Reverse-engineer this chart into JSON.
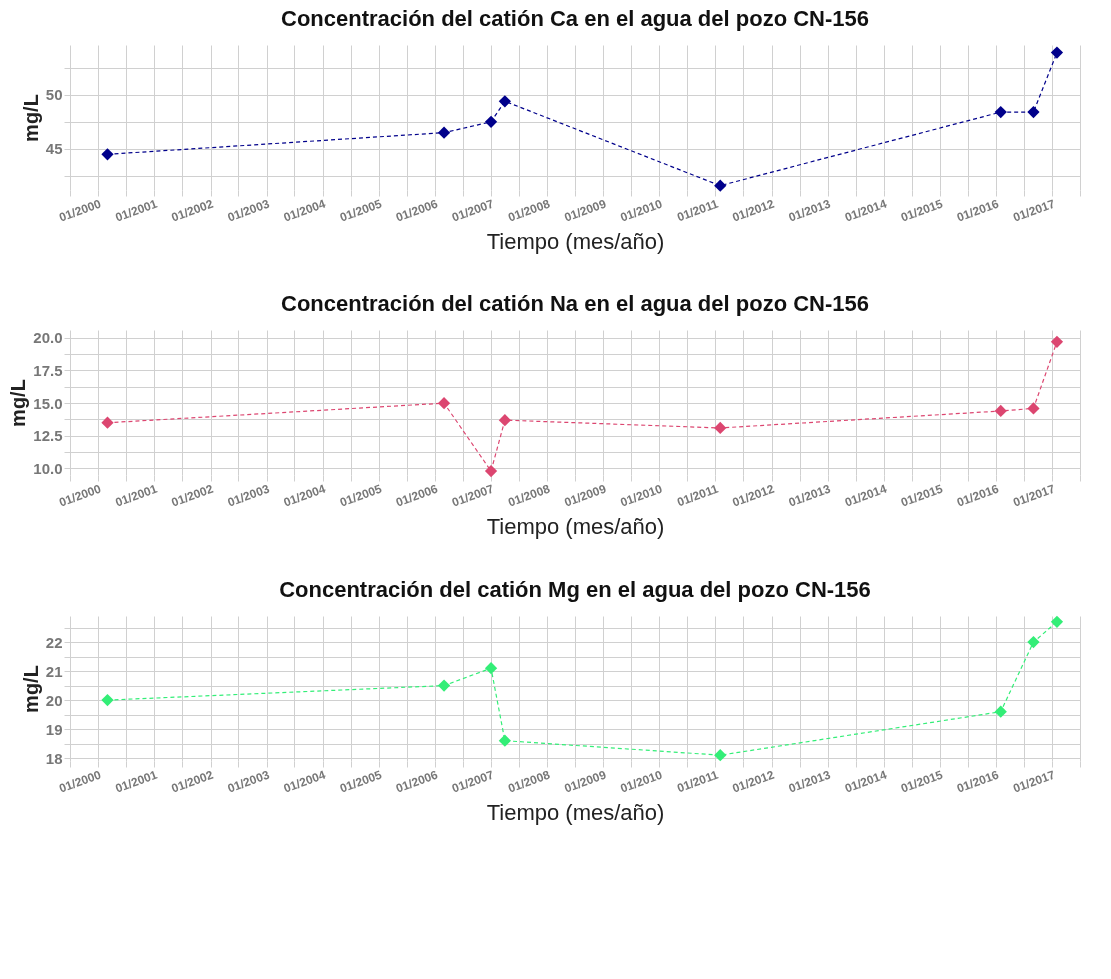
{
  "chart_data": [
    {
      "type": "line",
      "title": "Concentración del catión Ca en el agua del pozo CN-156",
      "xlabel": "Tiempo (mes/año)",
      "ylabel": "mg/L",
      "x": [
        "2000-03",
        "2006-03",
        "2007-01",
        "2007-04",
        "2011-02",
        "2016-02",
        "2016-09",
        "2017-02"
      ],
      "series": [
        {
          "color": "#00008b",
          "values": [
            44.5,
            46.5,
            47.5,
            49.4,
            41.6,
            48.4,
            48.4,
            53.9
          ]
        }
      ],
      "xlim": [
        "1999-07",
        "2017-07"
      ],
      "xticks": [
        {
          "value": "1999-07",
          "label": null
        },
        {
          "value": "2000-01",
          "label": "01/2000"
        },
        {
          "value": "2000-07",
          "label": null
        },
        {
          "value": "2001-01",
          "label": "01/2001"
        },
        {
          "value": "2001-07",
          "label": null
        },
        {
          "value": "2002-01",
          "label": "01/2002"
        },
        {
          "value": "2002-07",
          "label": null
        },
        {
          "value": "2003-01",
          "label": "01/2003"
        },
        {
          "value": "2003-07",
          "label": null
        },
        {
          "value": "2004-01",
          "label": "01/2004"
        },
        {
          "value": "2004-07",
          "label": null
        },
        {
          "value": "2005-01",
          "label": "01/2005"
        },
        {
          "value": "2005-07",
          "label": null
        },
        {
          "value": "2006-01",
          "label": "01/2006"
        },
        {
          "value": "2006-07",
          "label": null
        },
        {
          "value": "2007-01",
          "label": "01/2007"
        },
        {
          "value": "2007-07",
          "label": null
        },
        {
          "value": "2008-01",
          "label": "01/2008"
        },
        {
          "value": "2008-07",
          "label": null
        },
        {
          "value": "2009-01",
          "label": "01/2009"
        },
        {
          "value": "2009-07",
          "label": null
        },
        {
          "value": "2010-01",
          "label": "01/2010"
        },
        {
          "value": "2010-07",
          "label": null
        },
        {
          "value": "2011-01",
          "label": "01/2011"
        },
        {
          "value": "2011-07",
          "label": null
        },
        {
          "value": "2012-01",
          "label": "01/2012"
        },
        {
          "value": "2012-07",
          "label": null
        },
        {
          "value": "2013-01",
          "label": "01/2013"
        },
        {
          "value": "2013-07",
          "label": null
        },
        {
          "value": "2014-01",
          "label": "01/2014"
        },
        {
          "value": "2014-07",
          "label": null
        },
        {
          "value": "2015-01",
          "label": "01/2015"
        },
        {
          "value": "2015-07",
          "label": null
        },
        {
          "value": "2016-01",
          "label": "01/2016"
        },
        {
          "value": "2016-07",
          "label": null
        },
        {
          "value": "2017-01",
          "label": "01/2017"
        },
        {
          "value": "2017-07",
          "label": null
        }
      ],
      "ylim": [
        41.2,
        54.6
      ],
      "yticks": [
        {
          "value": 42.5,
          "label": null
        },
        45,
        {
          "value": 47.5,
          "label": null
        },
        50,
        {
          "value": 52.5,
          "label": null
        }
      ],
      "grid": true,
      "marker": "diamond",
      "line_style": "dashed"
    },
    {
      "type": "line",
      "title": "Concentración del catión Na en el agua del pozo CN-156",
      "xlabel": "Tiempo (mes/año)",
      "ylabel": "mg/L",
      "x": [
        "2000-03",
        "2006-03",
        "2007-01",
        "2007-04",
        "2011-02",
        "2016-02",
        "2016-09",
        "2017-02"
      ],
      "series": [
        {
          "color": "#dc4670",
          "values": [
            13.5,
            15.0,
            9.8,
            13.7,
            13.1,
            14.4,
            14.6,
            19.7
          ]
        }
      ],
      "xlim": [
        "1999-07",
        "2017-07"
      ],
      "xticks": [
        {
          "value": "1999-07",
          "label": null
        },
        {
          "value": "2000-01",
          "label": "01/2000"
        },
        {
          "value": "2000-07",
          "label": null
        },
        {
          "value": "2001-01",
          "label": "01/2001"
        },
        {
          "value": "2001-07",
          "label": null
        },
        {
          "value": "2002-01",
          "label": "01/2002"
        },
        {
          "value": "2002-07",
          "label": null
        },
        {
          "value": "2003-01",
          "label": "01/2003"
        },
        {
          "value": "2003-07",
          "label": null
        },
        {
          "value": "2004-01",
          "label": "01/2004"
        },
        {
          "value": "2004-07",
          "label": null
        },
        {
          "value": "2005-01",
          "label": "01/2005"
        },
        {
          "value": "2005-07",
          "label": null
        },
        {
          "value": "2006-01",
          "label": "01/2006"
        },
        {
          "value": "2006-07",
          "label": null
        },
        {
          "value": "2007-01",
          "label": "01/2007"
        },
        {
          "value": "2007-07",
          "label": null
        },
        {
          "value": "2008-01",
          "label": "01/2008"
        },
        {
          "value": "2008-07",
          "label": null
        },
        {
          "value": "2009-01",
          "label": "01/2009"
        },
        {
          "value": "2009-07",
          "label": null
        },
        {
          "value": "2010-01",
          "label": "01/2010"
        },
        {
          "value": "2010-07",
          "label": null
        },
        {
          "value": "2011-01",
          "label": "01/2011"
        },
        {
          "value": "2011-07",
          "label": null
        },
        {
          "value": "2012-01",
          "label": "01/2012"
        },
        {
          "value": "2012-07",
          "label": null
        },
        {
          "value": "2013-01",
          "label": "01/2013"
        },
        {
          "value": "2013-07",
          "label": null
        },
        {
          "value": "2014-01",
          "label": "01/2014"
        },
        {
          "value": "2014-07",
          "label": null
        },
        {
          "value": "2015-01",
          "label": "01/2015"
        },
        {
          "value": "2015-07",
          "label": null
        },
        {
          "value": "2016-01",
          "label": "01/2016"
        },
        {
          "value": "2016-07",
          "label": null
        },
        {
          "value": "2017-01",
          "label": "01/2017"
        },
        {
          "value": "2017-07",
          "label": null
        }
      ],
      "ylim": [
        9.5,
        20.6
      ],
      "yticks": [
        {
          "value": 10,
          "label": "10.0"
        },
        {
          "value": 11.25,
          "label": null
        },
        12.5,
        {
          "value": 13.75,
          "label": null
        },
        {
          "value": 15,
          "label": "15.0"
        },
        {
          "value": 16.25,
          "label": null
        },
        17.5,
        {
          "value": 18.75,
          "label": null
        },
        {
          "value": 20,
          "label": "20.0"
        }
      ],
      "grid": true,
      "marker": "diamond",
      "line_style": "dashed"
    },
    {
      "type": "line",
      "title": "Concentración del catión Mg en el agua del pozo CN-156",
      "xlabel": "Tiempo (mes/año)",
      "ylabel": "mg/L",
      "x": [
        "2000-03",
        "2006-03",
        "2007-01",
        "2007-04",
        "2011-02",
        "2016-02",
        "2016-09",
        "2017-02"
      ],
      "series": [
        {
          "color": "#33ee77",
          "values": [
            20.0,
            20.5,
            21.1,
            18.6,
            18.1,
            19.6,
            22.0,
            22.7
          ]
        }
      ],
      "xlim": [
        "1999-07",
        "2017-07"
      ],
      "xticks": [
        {
          "value": "1999-07",
          "label": null
        },
        {
          "value": "2000-01",
          "label": "01/2000"
        },
        {
          "value": "2000-07",
          "label": null
        },
        {
          "value": "2001-01",
          "label": "01/2001"
        },
        {
          "value": "2001-07",
          "label": null
        },
        {
          "value": "2002-01",
          "label": "01/2002"
        },
        {
          "value": "2002-07",
          "label": null
        },
        {
          "value": "2003-01",
          "label": "01/2003"
        },
        {
          "value": "2003-07",
          "label": null
        },
        {
          "value": "2004-01",
          "label": "01/2004"
        },
        {
          "value": "2004-07",
          "label": null
        },
        {
          "value": "2005-01",
          "label": "01/2005"
        },
        {
          "value": "2005-07",
          "label": null
        },
        {
          "value": "2006-01",
          "label": "01/2006"
        },
        {
          "value": "2006-07",
          "label": null
        },
        {
          "value": "2007-01",
          "label": "01/2007"
        },
        {
          "value": "2007-07",
          "label": null
        },
        {
          "value": "2008-01",
          "label": "01/2008"
        },
        {
          "value": "2008-07",
          "label": null
        },
        {
          "value": "2009-01",
          "label": "01/2009"
        },
        {
          "value": "2009-07",
          "label": null
        },
        {
          "value": "2010-01",
          "label": "01/2010"
        },
        {
          "value": "2010-07",
          "label": null
        },
        {
          "value": "2011-01",
          "label": "01/2011"
        },
        {
          "value": "2011-07",
          "label": null
        },
        {
          "value": "2012-01",
          "label": "01/2012"
        },
        {
          "value": "2012-07",
          "label": null
        },
        {
          "value": "2013-01",
          "label": "01/2013"
        },
        {
          "value": "2013-07",
          "label": null
        },
        {
          "value": "2014-01",
          "label": "01/2014"
        },
        {
          "value": "2014-07",
          "label": null
        },
        {
          "value": "2015-01",
          "label": "01/2015"
        },
        {
          "value": "2015-07",
          "label": null
        },
        {
          "value": "2016-01",
          "label": "01/2016"
        },
        {
          "value": "2016-07",
          "label": null
        },
        {
          "value": "2017-01",
          "label": "01/2017"
        },
        {
          "value": "2017-07",
          "label": null
        }
      ],
      "ylim": [
        17.9,
        22.9
      ],
      "yticks": [
        18,
        {
          "value": 18.5,
          "label": null
        },
        19,
        {
          "value": 19.5,
          "label": null
        },
        20,
        {
          "value": 20.5,
          "label": null
        },
        21,
        {
          "value": 21.5,
          "label": null
        },
        22,
        {
          "value": 22.5,
          "label": null
        }
      ],
      "grid": true,
      "marker": "diamond",
      "line_style": "dashed"
    }
  ]
}
